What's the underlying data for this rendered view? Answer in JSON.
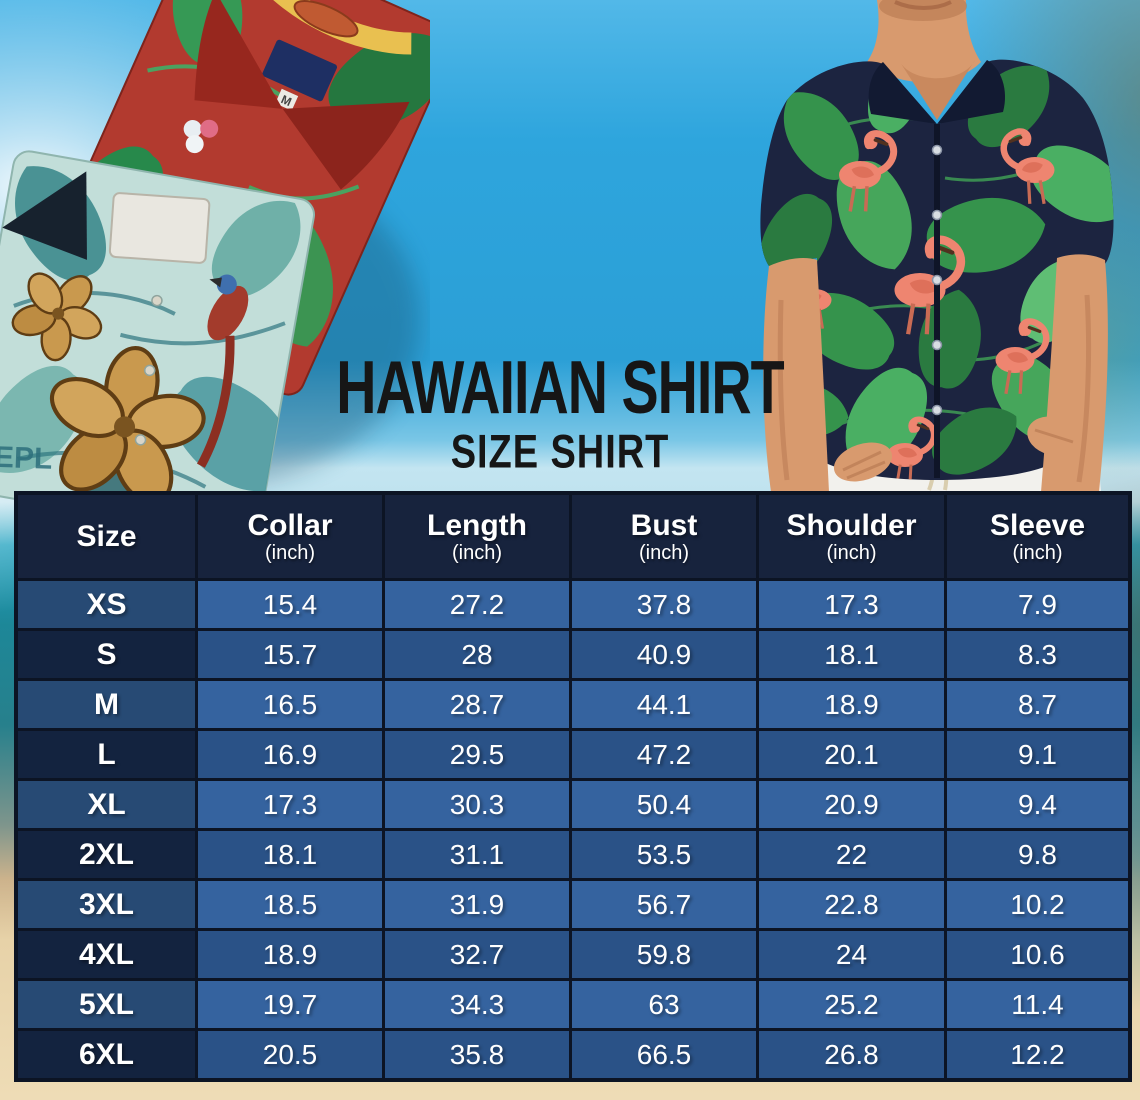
{
  "title": {
    "main": "HAWAIIAN SHIRT",
    "subtitle": "SIZE SHIRT"
  },
  "photos": {
    "folded_shirts_alt": "two folded hawaiian shirts (red palm print, teal hibiscus print)",
    "size_tag": "M",
    "pattern_text": "EPL",
    "man_alt": "man wearing navy flamingo hawaiian shirt and white pants"
  },
  "table": {
    "header": [
      {
        "label": "Size",
        "unit": ""
      },
      {
        "label": "Collar",
        "unit": "(inch)"
      },
      {
        "label": "Length",
        "unit": "(inch)"
      },
      {
        "label": "Bust",
        "unit": "(inch)"
      },
      {
        "label": "Shoulder",
        "unit": "(inch)"
      },
      {
        "label": "Sleeve",
        "unit": "(inch)"
      }
    ],
    "rows": [
      {
        "size": "XS",
        "values": [
          "15.4",
          "27.2",
          "37.8",
          "17.3",
          "7.9"
        ]
      },
      {
        "size": "S",
        "values": [
          "15.7",
          "28",
          "40.9",
          "18.1",
          "8.3"
        ]
      },
      {
        "size": "M",
        "values": [
          "16.5",
          "28.7",
          "44.1",
          "18.9",
          "8.7"
        ]
      },
      {
        "size": "L",
        "values": [
          "16.9",
          "29.5",
          "47.2",
          "20.1",
          "9.1"
        ]
      },
      {
        "size": "XL",
        "values": [
          "17.3",
          "30.3",
          "50.4",
          "20.9",
          "9.4"
        ]
      },
      {
        "size": "2XL",
        "values": [
          "18.1",
          "31.1",
          "53.5",
          "22",
          "9.8"
        ]
      },
      {
        "size": "3XL",
        "values": [
          "18.5",
          "31.9",
          "56.7",
          "22.8",
          "10.2"
        ]
      },
      {
        "size": "4XL",
        "values": [
          "18.9",
          "32.7",
          "59.8",
          "24",
          "10.6"
        ]
      },
      {
        "size": "5XL",
        "values": [
          "19.7",
          "34.3",
          "63",
          "25.2",
          "11.4"
        ]
      },
      {
        "size": "6XL",
        "values": [
          "20.5",
          "35.8",
          "66.5",
          "26.8",
          "12.2"
        ]
      }
    ]
  },
  "chart_data": {
    "type": "table",
    "title": "HAWAIIAN SHIRT",
    "subtitle": "SIZE SHIRT",
    "columns": [
      "Size",
      "Collar (inch)",
      "Length (inch)",
      "Bust (inch)",
      "Shoulder (inch)",
      "Sleeve (inch)"
    ],
    "rows": [
      [
        "XS",
        "15.4",
        "27.2",
        "37.8",
        "17.3",
        "7.9"
      ],
      [
        "S",
        "15.7",
        "28",
        "40.9",
        "18.1",
        "8.3"
      ],
      [
        "M",
        "16.5",
        "28.7",
        "44.1",
        "18.9",
        "8.7"
      ],
      [
        "L",
        "16.9",
        "29.5",
        "47.2",
        "20.1",
        "9.1"
      ],
      [
        "XL",
        "17.3",
        "30.3",
        "50.4",
        "20.9",
        "9.4"
      ],
      [
        "2XL",
        "18.1",
        "31.1",
        "53.5",
        "22",
        "9.8"
      ],
      [
        "3XL",
        "18.5",
        "31.9",
        "56.7",
        "22.8",
        "10.2"
      ],
      [
        "4XL",
        "18.9",
        "32.7",
        "59.8",
        "24",
        "10.6"
      ],
      [
        "5XL",
        "19.7",
        "34.3",
        "63",
        "25.2",
        "11.4"
      ],
      [
        "6XL",
        "20.5",
        "35.8",
        "66.5",
        "26.8",
        "12.2"
      ]
    ]
  },
  "colors": {
    "table_header_bg": "#17233d",
    "table_row_odd": "#35639f",
    "table_row_even": "#2a5287",
    "size_col_odd": "#274a74",
    "size_col_even": "#13233f",
    "table_border": "#0c1424",
    "title_text": "#161616",
    "sky_blue": "#2b9fd6",
    "sea_teal": "#1d8798",
    "sand": "#eedcb6",
    "shirt_red": "#b23a2f",
    "shirt_teal": "#c2ded9",
    "shirt_navy": "#1c2440",
    "leaf_green": "#3f9c55",
    "flamingo_pink": "#ee8570"
  }
}
